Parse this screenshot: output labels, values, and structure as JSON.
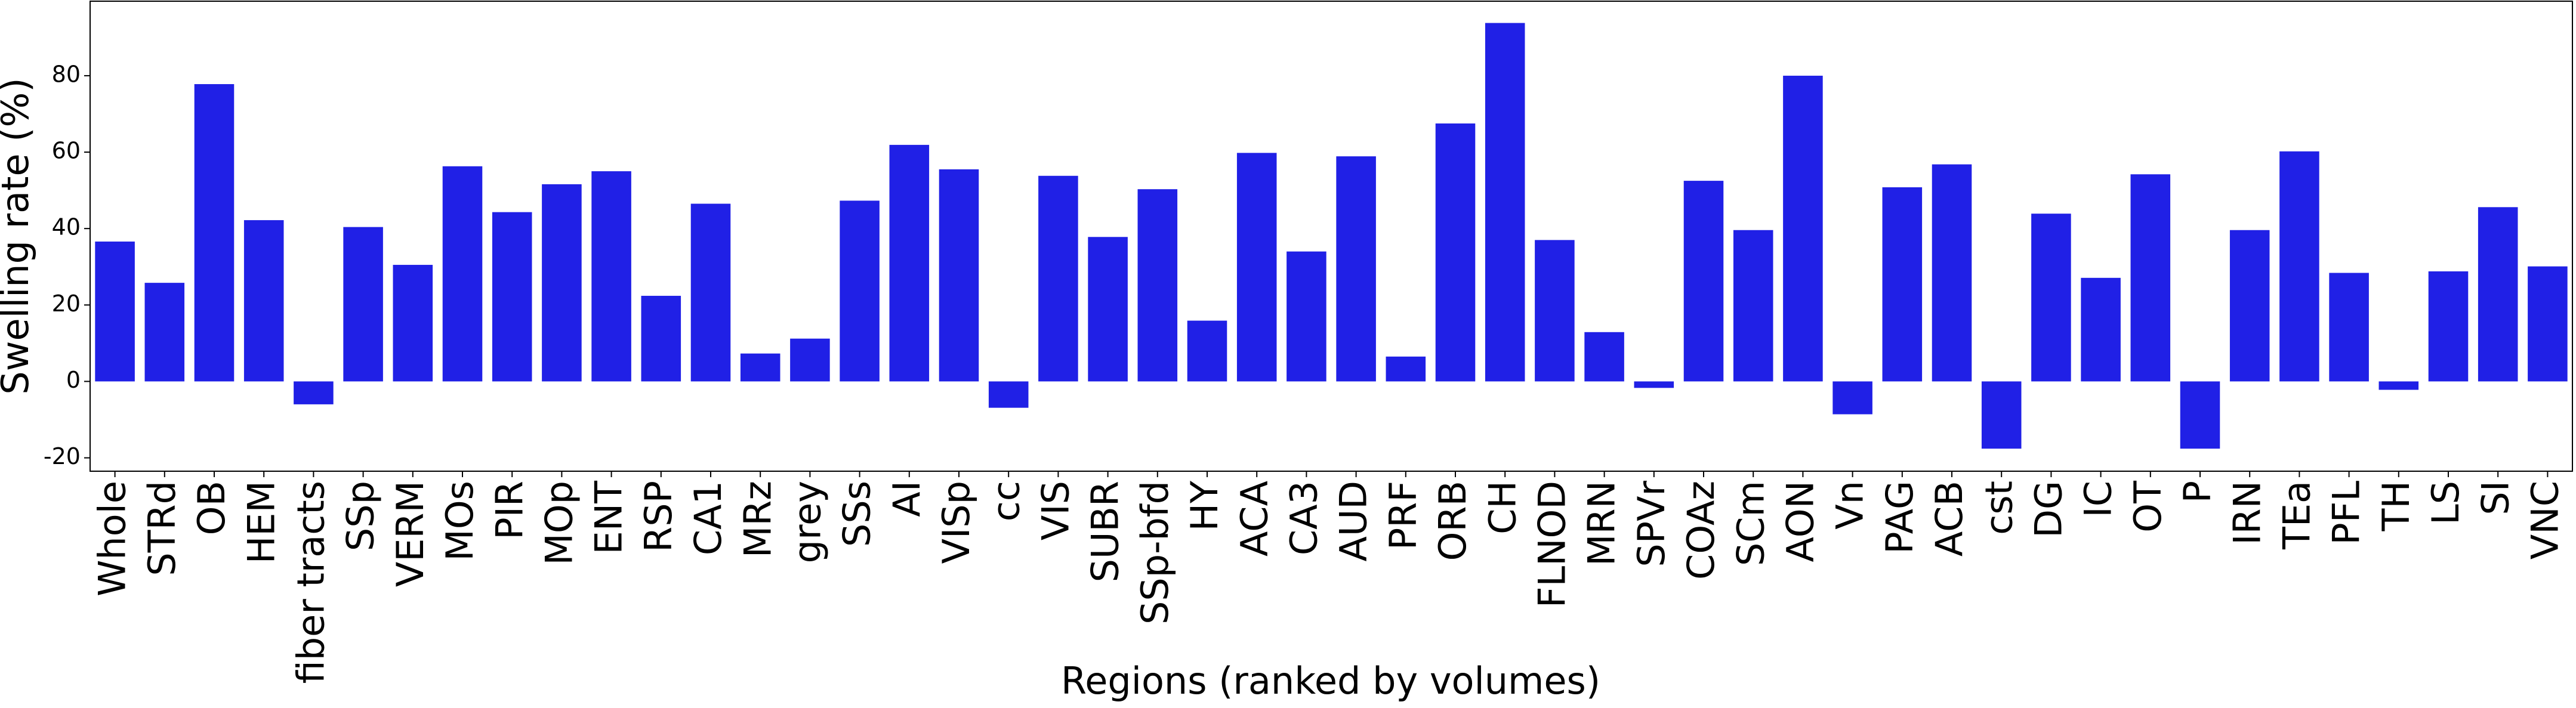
{
  "chart_data": {
    "type": "bar",
    "x_label": "Regions (ranked by volumes)",
    "y_label": "Swelling rate (%)",
    "categories": [
      "Whole",
      "STRd",
      "OB",
      "HEM",
      "fiber tracts",
      "SSp",
      "VERM",
      "MOs",
      "PIR",
      "MOp",
      "ENT",
      "RSP",
      "CA1",
      "MRz",
      "grey",
      "SSs",
      "AI",
      "VISp",
      "cc",
      "VIS",
      "SUBR",
      "SSp-bfd",
      "HY",
      "ACA",
      "CA3",
      "AUD",
      "PRF",
      "ORB",
      "CH",
      "FLNOD",
      "MRN",
      "SPVr",
      "COAz",
      "SCm",
      "AON",
      "Vn",
      "PAG",
      "ACB",
      "cst",
      "DG",
      "IC",
      "OT",
      "P",
      "IRN",
      "TEa",
      "PFL",
      "TH",
      "LS",
      "SI",
      "VNC"
    ],
    "values": [
      36.6,
      25.8,
      77.8,
      42.2,
      -6,
      40.4,
      30.5,
      56.3,
      44.3,
      51.6,
      55,
      22.4,
      46.5,
      7.3,
      11.2,
      47.3,
      61.9,
      55.5,
      -6.9,
      53.8,
      37.8,
      50.3,
      15.9,
      59.8,
      34,
      58.9,
      6.5,
      67.5,
      93.8,
      37,
      12.9,
      -1.7,
      52.5,
      39.6,
      80,
      -8.6,
      50.8,
      56.8,
      -17.6,
      43.9,
      27.1,
      54.2,
      -17.6,
      39.6,
      60.2,
      28.4,
      -2.2,
      28.8,
      45.6,
      30.1
    ],
    "color": "#2020e6",
    "ylim": [
      -23.5,
      99.5
    ],
    "yticks": [
      -20,
      0,
      20,
      40,
      60,
      80
    ],
    "grid": false
  }
}
